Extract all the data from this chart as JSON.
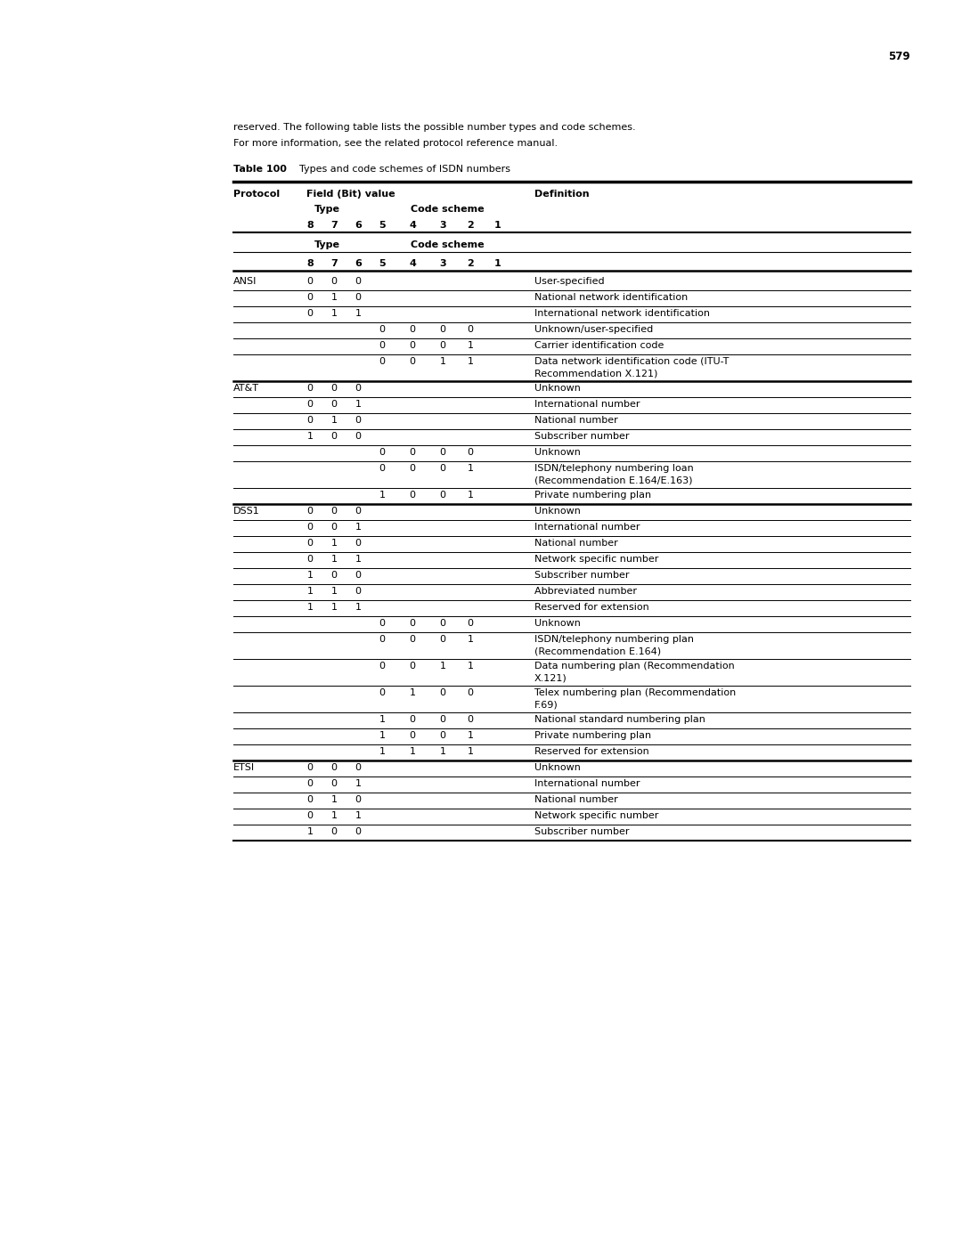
{
  "page_number": "579",
  "intro_line1": "reserved. The following table lists the possible number types and code schemes.",
  "intro_line2": "For more information, see the related protocol reference manual.",
  "table_caption_bold": "Table 100",
  "table_caption_rest": "  Types and code schemes of ISDN numbers",
  "rows": [
    [
      "ANSI",
      "0",
      "0",
      "0",
      "",
      "",
      "",
      "",
      "",
      "User-specified"
    ],
    [
      "",
      "0",
      "1",
      "0",
      "",
      "",
      "",
      "",
      "",
      "National network identification"
    ],
    [
      "",
      "0",
      "1",
      "1",
      "",
      "",
      "",
      "",
      "",
      "International network identification"
    ],
    [
      "",
      "",
      "",
      "",
      "0",
      "0",
      "0",
      "0",
      "",
      "Unknown/user-specified"
    ],
    [
      "",
      "",
      "",
      "",
      "0",
      "0",
      "0",
      "1",
      "",
      "Carrier identification code"
    ],
    [
      "",
      "",
      "",
      "",
      "0",
      "0",
      "1",
      "1",
      "",
      "Data network identification code (ITU-T\nRecommendation X.121)"
    ],
    [
      "AT&T",
      "0",
      "0",
      "0",
      "",
      "",
      "",
      "",
      "",
      "Unknown"
    ],
    [
      "",
      "0",
      "0",
      "1",
      "",
      "",
      "",
      "",
      "",
      "International number"
    ],
    [
      "",
      "0",
      "1",
      "0",
      "",
      "",
      "",
      "",
      "",
      "National number"
    ],
    [
      "",
      "1",
      "0",
      "0",
      "",
      "",
      "",
      "",
      "",
      "Subscriber number"
    ],
    [
      "",
      "",
      "",
      "",
      "0",
      "0",
      "0",
      "0",
      "",
      "Unknown"
    ],
    [
      "",
      "",
      "",
      "",
      "0",
      "0",
      "0",
      "1",
      "",
      "ISDN/telephony numbering loan\n(Recommendation E.164/E.163)"
    ],
    [
      "",
      "",
      "",
      "",
      "1",
      "0",
      "0",
      "1",
      "",
      "Private numbering plan"
    ],
    [
      "DSS1",
      "0",
      "0",
      "0",
      "",
      "",
      "",
      "",
      "",
      "Unknown"
    ],
    [
      "",
      "0",
      "0",
      "1",
      "",
      "",
      "",
      "",
      "",
      "International number"
    ],
    [
      "",
      "0",
      "1",
      "0",
      "",
      "",
      "",
      "",
      "",
      "National number"
    ],
    [
      "",
      "0",
      "1",
      "1",
      "",
      "",
      "",
      "",
      "",
      "Network specific number"
    ],
    [
      "",
      "1",
      "0",
      "0",
      "",
      "",
      "",
      "",
      "",
      "Subscriber number"
    ],
    [
      "",
      "1",
      "1",
      "0",
      "",
      "",
      "",
      "",
      "",
      "Abbreviated number"
    ],
    [
      "",
      "1",
      "1",
      "1",
      "",
      "",
      "",
      "",
      "",
      "Reserved for extension"
    ],
    [
      "",
      "",
      "",
      "",
      "0",
      "0",
      "0",
      "0",
      "",
      "Unknown"
    ],
    [
      "",
      "",
      "",
      "",
      "0",
      "0",
      "0",
      "1",
      "",
      "ISDN/telephony numbering plan\n(Recommendation E.164)"
    ],
    [
      "",
      "",
      "",
      "",
      "0",
      "0",
      "1",
      "1",
      "",
      "Data numbering plan (Recommendation\nX.121)"
    ],
    [
      "",
      "",
      "",
      "",
      "0",
      "1",
      "0",
      "0",
      "",
      "Telex numbering plan (Recommendation\nF.69)"
    ],
    [
      "",
      "",
      "",
      "",
      "1",
      "0",
      "0",
      "0",
      "",
      "National standard numbering plan"
    ],
    [
      "",
      "",
      "",
      "",
      "1",
      "0",
      "0",
      "1",
      "",
      "Private numbering plan"
    ],
    [
      "",
      "",
      "",
      "",
      "1",
      "1",
      "1",
      "1",
      "",
      "Reserved for extension"
    ],
    [
      "ETSI",
      "0",
      "0",
      "0",
      "",
      "",
      "",
      "",
      "",
      "Unknown"
    ],
    [
      "",
      "0",
      "0",
      "1",
      "",
      "",
      "",
      "",
      "",
      "International number"
    ],
    [
      "",
      "0",
      "1",
      "0",
      "",
      "",
      "",
      "",
      "",
      "National number"
    ],
    [
      "",
      "0",
      "1",
      "1",
      "",
      "",
      "",
      "",
      "",
      "Network specific number"
    ],
    [
      "",
      "1",
      "0",
      "0",
      "",
      "",
      "",
      "",
      "",
      "Subscriber number"
    ]
  ],
  "thick_before_rows": [
    6,
    13,
    27
  ],
  "bg_color": "#ffffff",
  "text_color": "#000000",
  "font_size": 8.0,
  "bold_font_size": 8.0
}
